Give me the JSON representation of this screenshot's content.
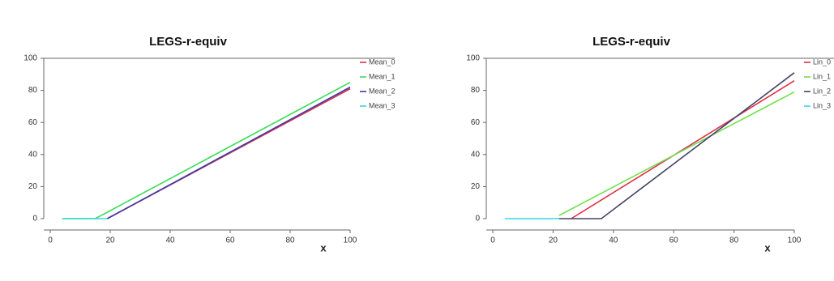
{
  "chart_data": [
    {
      "type": "line",
      "title": "LEGS-r-equiv",
      "x_label": "x",
      "xlim": [
        0,
        100
      ],
      "xticks": [
        0,
        20,
        40,
        60,
        80,
        100
      ],
      "ylim": [
        0,
        100
      ],
      "yticks": [
        0,
        20,
        40,
        60,
        80,
        100
      ],
      "legend": "top-right",
      "series": [
        {
          "name": "Mean_0",
          "color": "#e0304a",
          "x": [
            19,
            100
          ],
          "values": [
            0,
            81
          ]
        },
        {
          "name": "Mean_1",
          "color": "#3ddc5a",
          "x": [
            4,
            15,
            100
          ],
          "values": [
            0,
            0,
            85
          ]
        },
        {
          "name": "Mean_2",
          "color": "#3a3aa8",
          "x": [
            19,
            100
          ],
          "values": [
            0,
            82
          ]
        },
        {
          "name": "Mean_3",
          "color": "#35d8e0",
          "x": [
            4,
            19
          ],
          "values": [
            0,
            0
          ]
        }
      ]
    },
    {
      "type": "line",
      "title": "LEGS-r-equiv",
      "x_label": "x",
      "xlim": [
        0,
        100
      ],
      "xticks": [
        0,
        20,
        40,
        60,
        80,
        100
      ],
      "ylim": [
        0,
        100
      ],
      "yticks": [
        0,
        20,
        40,
        60,
        80,
        100
      ],
      "legend": "top-right",
      "series": [
        {
          "name": "Lin_0",
          "color": "#e0304a",
          "x": [
            26,
            100
          ],
          "values": [
            0,
            86
          ]
        },
        {
          "name": "Lin_1",
          "color": "#6ee04a",
          "x": [
            22,
            100
          ],
          "values": [
            2,
            79
          ]
        },
        {
          "name": "Lin_2",
          "color": "#444466",
          "x": [
            22,
            36,
            100
          ],
          "values": [
            0,
            0,
            91
          ]
        },
        {
          "name": "Lin_3",
          "color": "#35d8e0",
          "x": [
            4,
            22
          ],
          "values": [
            0,
            0
          ]
        }
      ]
    }
  ]
}
